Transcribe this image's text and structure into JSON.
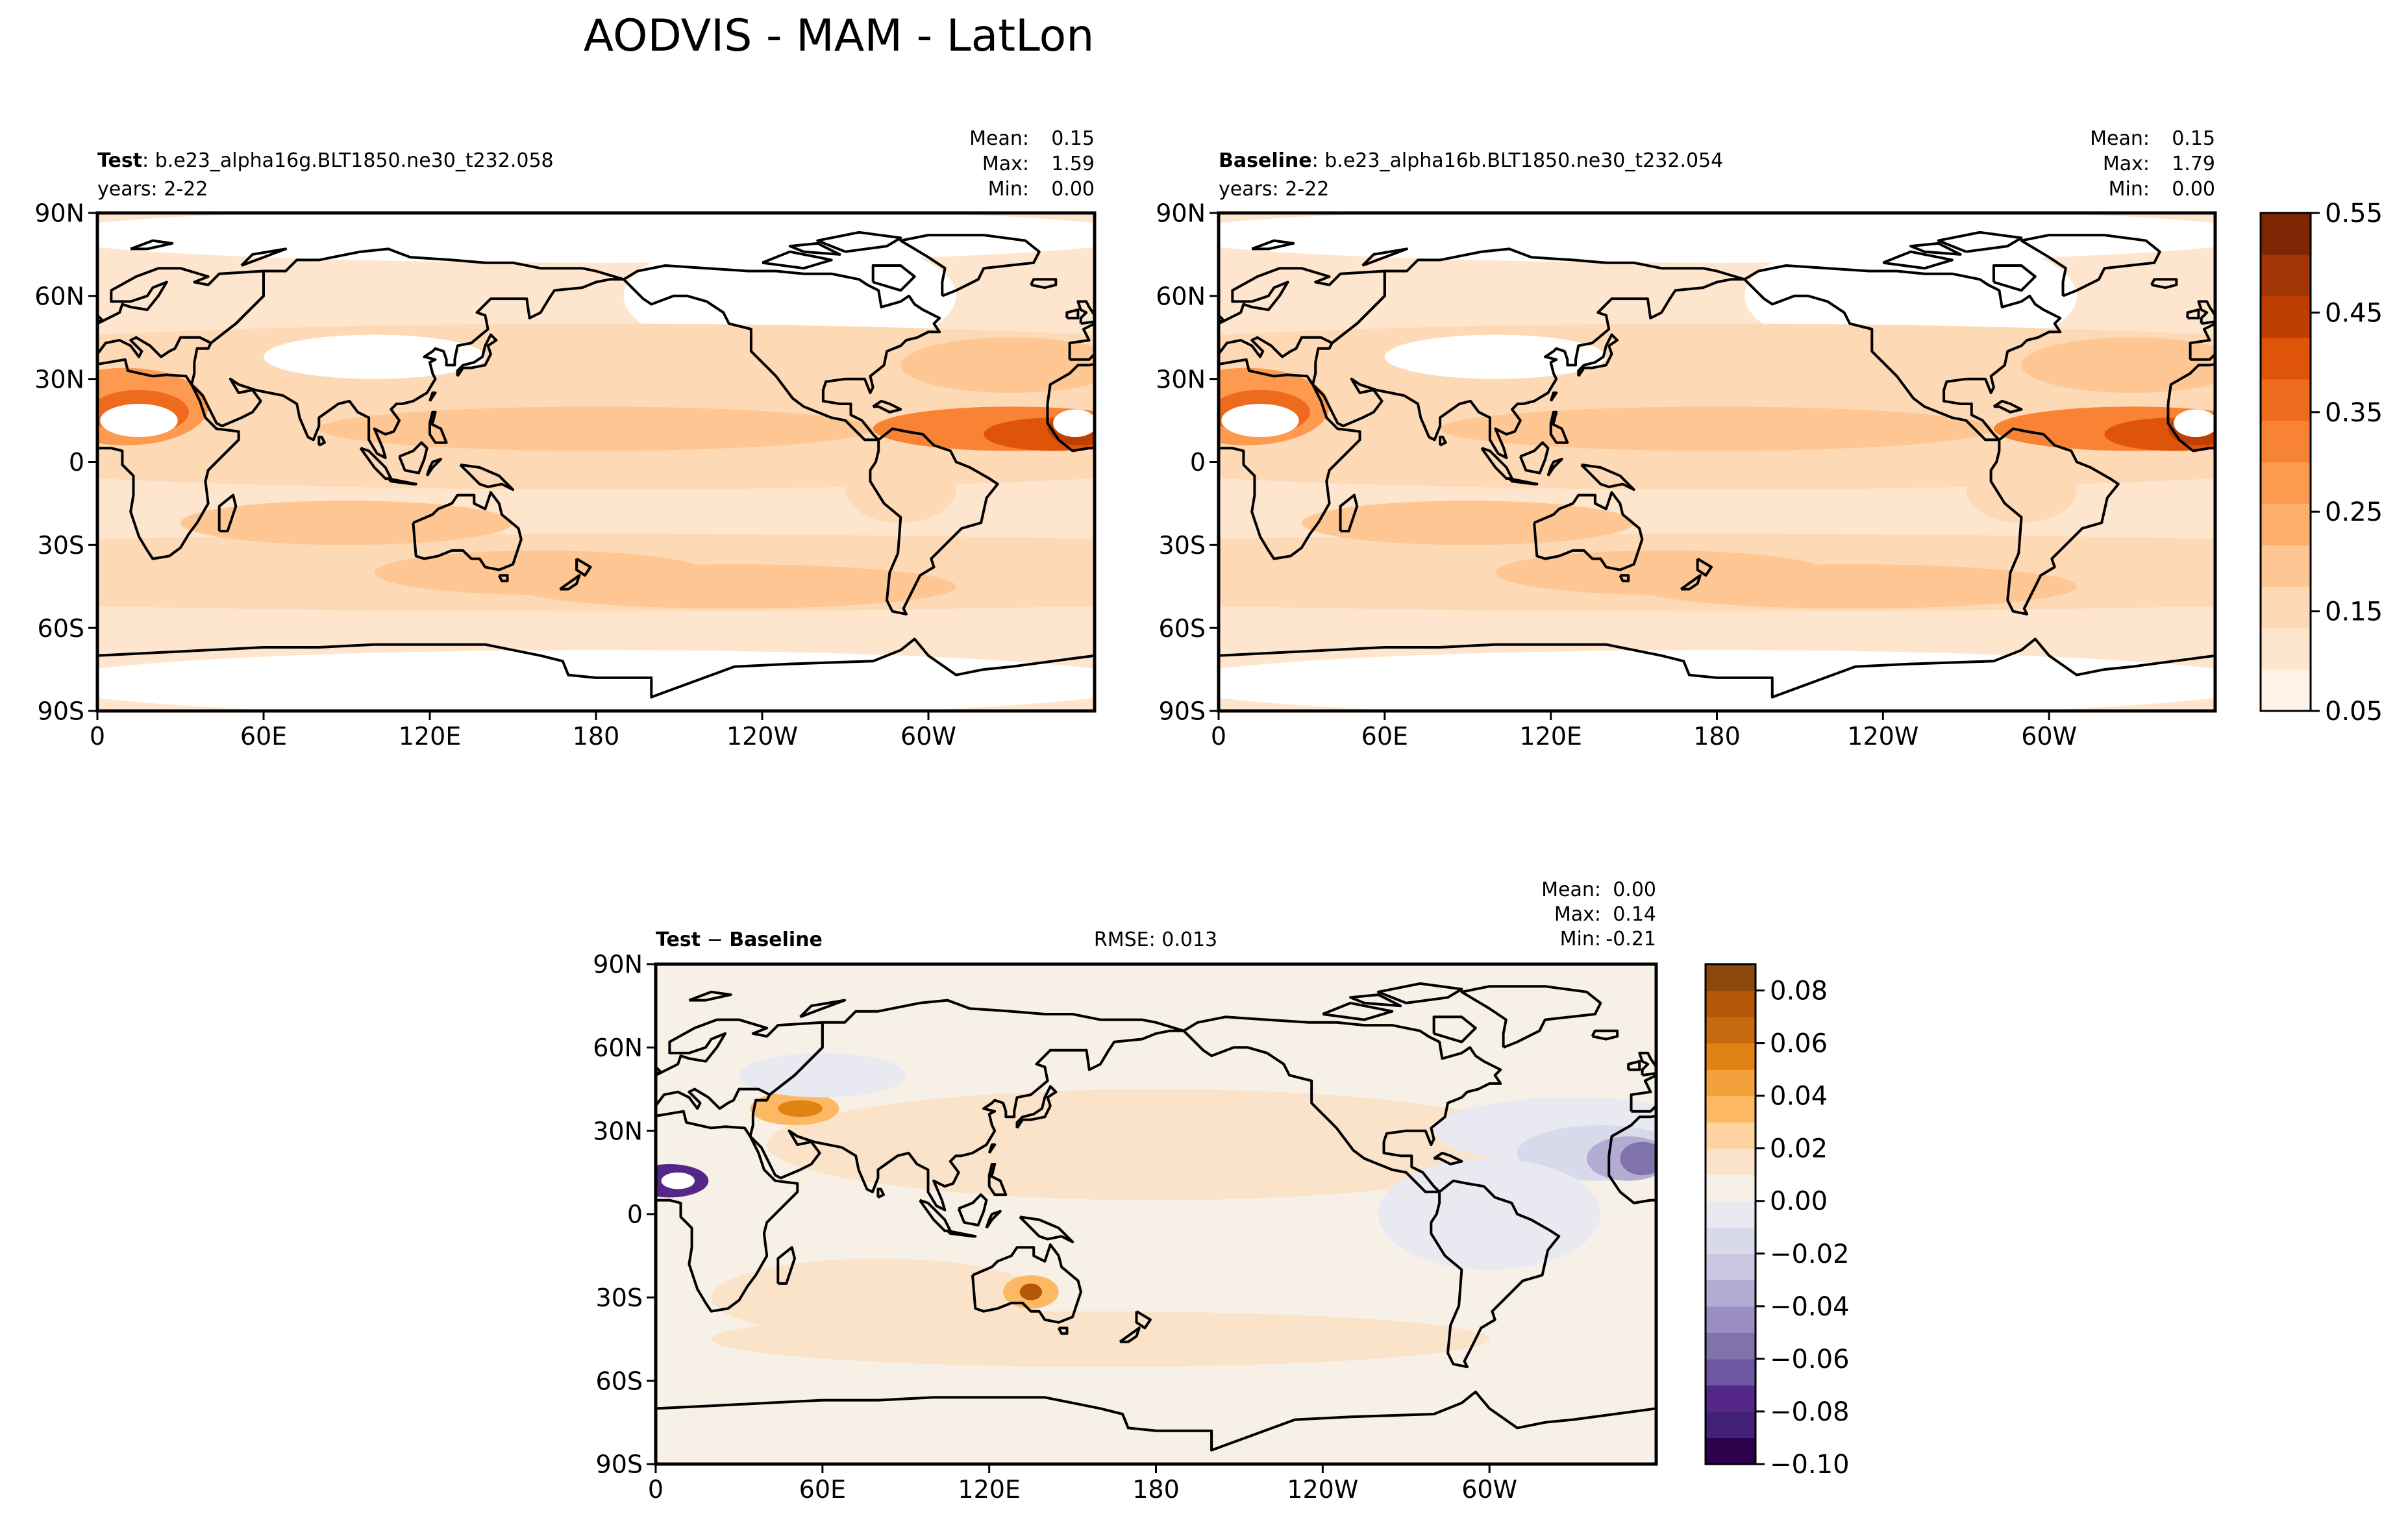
{
  "figure": {
    "title": "AODVIS - MAM - LatLon"
  },
  "axes": {
    "lat_ticks": [
      "90N",
      "60N",
      "30N",
      "0",
      "30S",
      "60S",
      "90S"
    ],
    "lon_ticks": [
      "0",
      "60E",
      "120E",
      "180",
      "120W",
      "60W"
    ]
  },
  "panels": {
    "test": {
      "label_bold": "Test",
      "label_sep": ": ",
      "case": "b.e23_alpha16g.BLT1850.ne30_t232.058",
      "years": "years: 2-22",
      "stats": {
        "mean_label": "Mean:",
        "mean": "0.15",
        "max_label": "Max:",
        "max": "1.59",
        "min_label": "Min:",
        "min": "0.00"
      }
    },
    "baseline": {
      "label_bold": "Baseline",
      "label_sep": ": ",
      "case": "b.e23_alpha16b.BLT1850.ne30_t232.054",
      "years": "years: 2-22",
      "stats": {
        "mean_label": "Mean:",
        "mean": "0.15",
        "max_label": "Max:",
        "max": "1.79",
        "min_label": "Min:",
        "min": "0.00"
      }
    },
    "diff": {
      "label_bold_a": "Test",
      "label_minus": " − ",
      "label_bold_b": "Baseline",
      "rmse": "RMSE: 0.013",
      "stats": {
        "mean_label": "Mean:",
        "mean": "0.00",
        "max_label": "Max:",
        "max": "0.14",
        "min_label": "Min:",
        "min": "-0.21"
      }
    }
  },
  "colorbars": {
    "main": {
      "ticks": [
        "0.55",
        "0.45",
        "0.35",
        "0.25",
        "0.15",
        "0.05"
      ],
      "colors": [
        "#fff3e8",
        "#fee6ce",
        "#fdd9b5",
        "#fdc692",
        "#fdae6b",
        "#fd9a4f",
        "#f98334",
        "#ee6b1e",
        "#de5408",
        "#bf3f02",
        "#a23503",
        "#7f2704"
      ]
    },
    "diff": {
      "ticks": [
        "0.08",
        "0.06",
        "0.04",
        "0.02",
        "0.00",
        "−0.02",
        "−0.04",
        "−0.06",
        "−0.08",
        "−0.10"
      ],
      "colors": [
        "#2d004b",
        "#432177",
        "#542788",
        "#6e58a1",
        "#8073ac",
        "#998dc1",
        "#b2abd2",
        "#ccc6e2",
        "#d8daeb",
        "#e9e9f2",
        "#f7f0e6",
        "#fbe3c9",
        "#fdd3a1",
        "#fdb863",
        "#f2a13d",
        "#e08214",
        "#c56a0e",
        "#b35806",
        "#8c4a0a"
      ]
    }
  },
  "chart_data": [
    {
      "type": "heatmap",
      "title": "Test: b.e23_alpha16g.BLT1850.ne30_t232.058",
      "variable": "AODVIS",
      "xlim": [
        0,
        360
      ],
      "ylim": [
        -90,
        90
      ],
      "color_range": [
        0.05,
        0.55
      ],
      "stats": {
        "mean": 0.15,
        "max": 1.59,
        "min": 0.0
      }
    },
    {
      "type": "heatmap",
      "title": "Baseline: b.e23_alpha16b.BLT1850.ne30_t232.054",
      "variable": "AODVIS",
      "xlim": [
        0,
        360
      ],
      "ylim": [
        -90,
        90
      ],
      "color_range": [
        0.05,
        0.55
      ],
      "stats": {
        "mean": 0.15,
        "max": 1.79,
        "min": 0.0
      }
    },
    {
      "type": "heatmap",
      "title": "Test − Baseline",
      "variable": "AODVIS",
      "xlim": [
        0,
        360
      ],
      "ylim": [
        -90,
        90
      ],
      "color_range": [
        -0.1,
        0.09
      ],
      "rmse": 0.013,
      "stats": {
        "mean": 0.0,
        "max": 0.14,
        "min": -0.21
      }
    }
  ]
}
